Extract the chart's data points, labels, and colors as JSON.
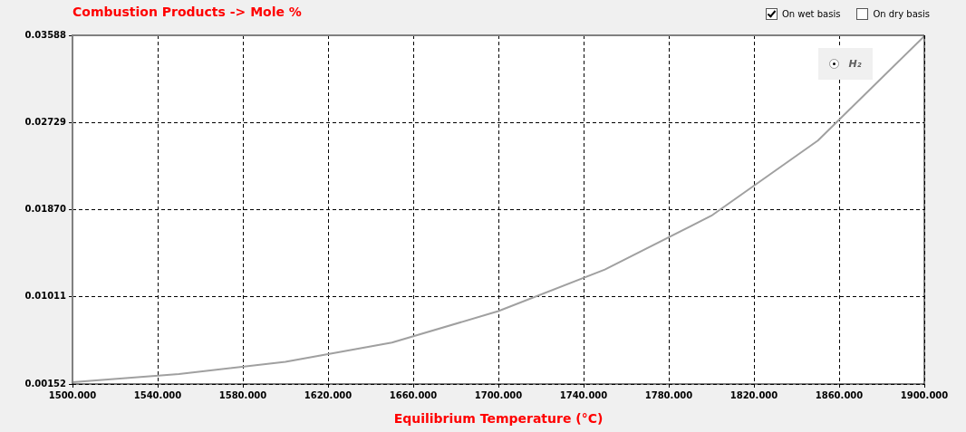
{
  "chart_data": {
    "type": "line",
    "title": "Combustion Products -> Mole %",
    "xlabel": "Equilibrium Temperature (°C)",
    "x": [
      1500,
      1550,
      1600,
      1650,
      1700,
      1750,
      1800,
      1850,
      1900
    ],
    "series": [
      {
        "name": "H₂",
        "color": "#a0a0a0",
        "values": [
          0.0017,
          0.0025,
          0.0037,
          0.0056,
          0.0087,
          0.0128,
          0.0181,
          0.0255,
          0.0358
        ]
      }
    ],
    "xlim": [
      1500,
      1900
    ],
    "xticks": [
      {
        "value": 1500,
        "label": "1500.000"
      },
      {
        "value": 1540,
        "label": "1540.000"
      },
      {
        "value": 1580,
        "label": "1580.000"
      },
      {
        "value": 1620,
        "label": "1620.000"
      },
      {
        "value": 1660,
        "label": "1660.000"
      },
      {
        "value": 1700,
        "label": "1700.000"
      },
      {
        "value": 1740,
        "label": "1740.000"
      },
      {
        "value": 1780,
        "label": "1780.000"
      },
      {
        "value": 1820,
        "label": "1820.000"
      },
      {
        "value": 1860,
        "label": "1860.000"
      },
      {
        "value": 1900,
        "label": "1900.000"
      }
    ],
    "ylim": [
      0.00152,
      0.03588
    ],
    "yticks": [
      0.00152,
      0.01011,
      {
        "value": 0.0187,
        "label": "0.01870"
      },
      0.02729,
      0.03588
    ],
    "grid": true,
    "legend": "top right",
    "marker": "none",
    "line_style": "solid",
    "annotations": [
      "On wet basis",
      "On dry basis"
    ]
  }
}
